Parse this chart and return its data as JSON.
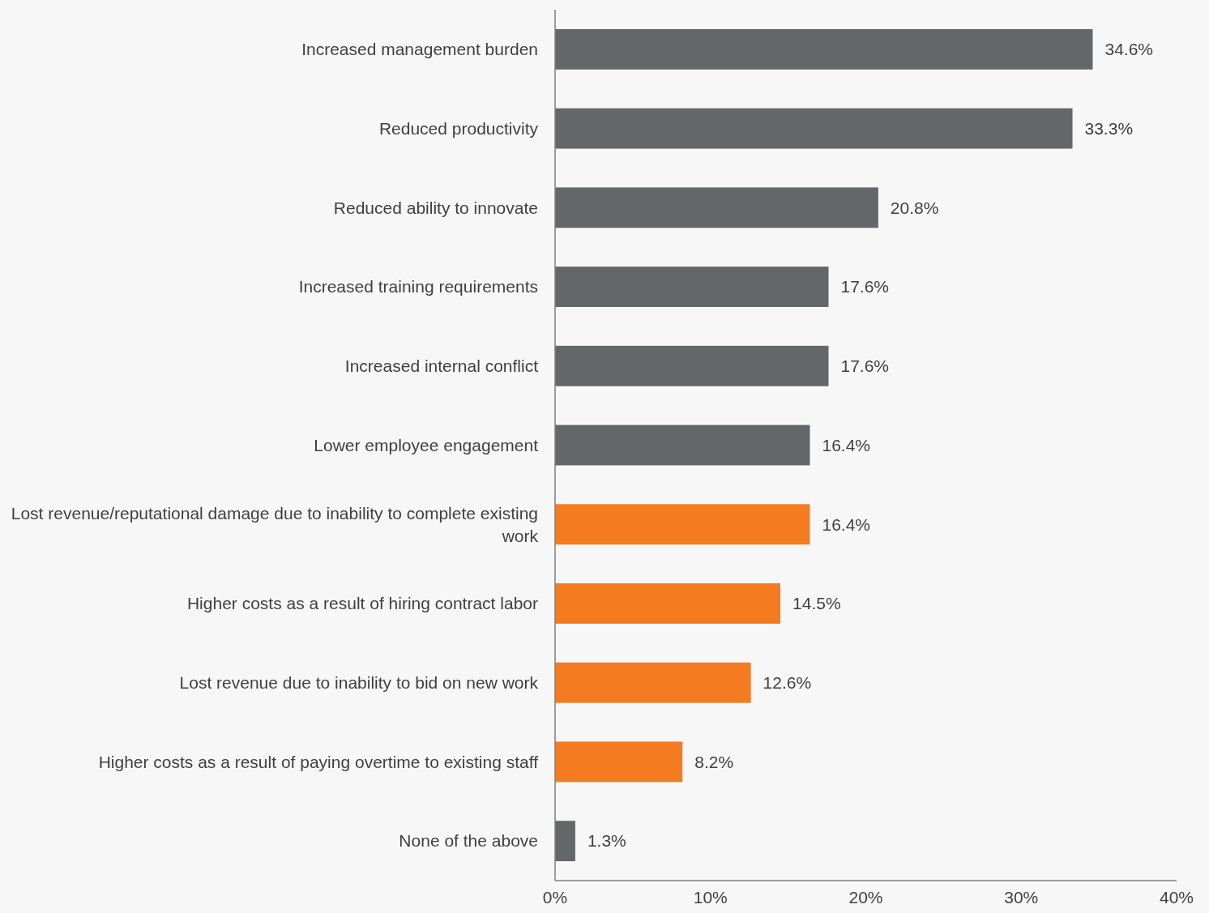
{
  "chart_data": {
    "type": "bar",
    "orientation": "horizontal",
    "categories": [
      "Increased management burden",
      "Reduced productivity",
      "Reduced ability to innovate",
      "Increased training requirements",
      "Increased internal conflict",
      "Lower employee engagement",
      "Lost revenue/reputational damage due to inability to complete existing work",
      "Higher costs as a result of hiring contract labor",
      "Lost revenue due to inability to bid on new work",
      "Higher costs as a result of paying overtime to existing staff",
      "None of the above"
    ],
    "values": [
      34.6,
      33.3,
      20.8,
      17.6,
      17.6,
      16.4,
      16.4,
      14.5,
      12.6,
      8.2,
      1.3
    ],
    "colors": [
      "#636767",
      "#636767",
      "#636767",
      "#636767",
      "#636767",
      "#636767",
      "#f47b20",
      "#f47b20",
      "#f47b20",
      "#f47b20",
      "#636767"
    ],
    "value_labels": [
      "34.6%",
      "33.3%",
      "20.8%",
      "17.6%",
      "17.6%",
      "16.4%",
      "16.4%",
      "14.5%",
      "12.6%",
      "8.2%",
      "1.3%"
    ],
    "xlim": [
      0,
      40
    ],
    "xticks": [
      {
        "value": 0,
        "label": "0%"
      },
      {
        "value": 10,
        "label": "10%"
      },
      {
        "value": 20,
        "label": "20%"
      },
      {
        "value": 30,
        "label": "30%"
      },
      {
        "value": 40,
        "label": "40%"
      }
    ],
    "grid": false
  }
}
